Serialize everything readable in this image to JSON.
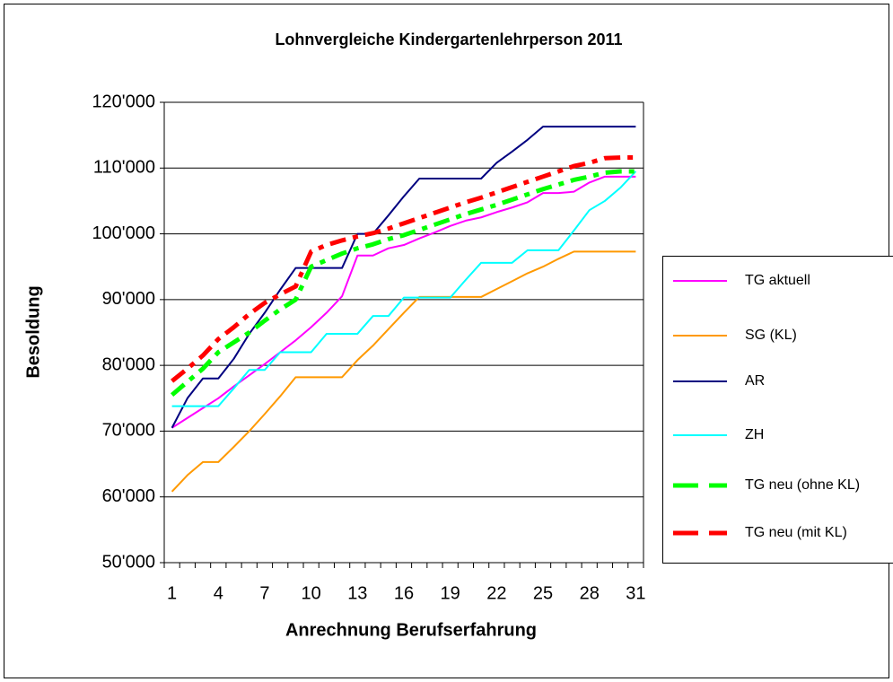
{
  "chart_data": {
    "type": "line",
    "title": "Lohnvergleiche Kindergartenlehrperson 2011",
    "x_label": "Anrechnung Berufserfahrung",
    "y_label": "Besoldung",
    "categories": [
      "1",
      null,
      null,
      "4",
      null,
      null,
      "7",
      null,
      null,
      "10",
      null,
      null,
      "13",
      null,
      null,
      "16",
      null,
      null,
      "19",
      null,
      null,
      "22",
      null,
      null,
      "25",
      null,
      null,
      "28",
      null,
      null,
      "31"
    ],
    "ylim": [
      50000,
      120000
    ],
    "yticks": [
      {
        "value": 50000,
        "label": "50'000"
      },
      {
        "value": 60000,
        "label": "60'000"
      },
      {
        "value": 70000,
        "label": "70'000"
      },
      {
        "value": 80000,
        "label": "80'000"
      },
      {
        "value": 90000,
        "label": "90'000"
      },
      {
        "value": 100000,
        "label": "100'000"
      },
      {
        "value": 110000,
        "label": "110'000"
      },
      {
        "value": 120000,
        "label": "120'000"
      }
    ],
    "grid": true,
    "legend": "right",
    "series": [
      {
        "name": "TG aktuell",
        "color": "#ff00ff",
        "dashed": false,
        "values": [
          70500,
          72000,
          73500,
          75000,
          76800,
          78500,
          80200,
          82000,
          83800,
          85800,
          88000,
          90500,
          96700,
          96700,
          97800,
          98300,
          99300,
          100200,
          101200,
          102000,
          102500,
          103300,
          104000,
          104800,
          106200,
          106200,
          106400,
          107800,
          108700,
          108700,
          108700
        ]
      },
      {
        "name": "SG (KL)",
        "color": "#ff9900",
        "dashed": false,
        "values": [
          60800,
          63300,
          65300,
          65300,
          67600,
          70000,
          72600,
          75300,
          78200,
          78200,
          78200,
          78200,
          80800,
          83000,
          85500,
          88000,
          90400,
          90400,
          90400,
          90400,
          90400,
          91600,
          92800,
          94000,
          95000,
          96200,
          97300,
          97300,
          97300,
          97300,
          97300
        ]
      },
      {
        "name": "AR",
        "color": "#000080",
        "dashed": false,
        "values": [
          70500,
          75000,
          78000,
          78000,
          81000,
          84800,
          88000,
          91500,
          94800,
          94800,
          94800,
          94800,
          100000,
          100000,
          102800,
          105700,
          108400,
          108400,
          108400,
          108400,
          108400,
          110800,
          112500,
          114300,
          116300,
          116300,
          116300,
          116300,
          116300,
          116300,
          116300
        ]
      },
      {
        "name": "ZH",
        "color": "#00ffff",
        "dashed": false,
        "values": [
          73800,
          73800,
          73800,
          73800,
          76500,
          79300,
          79300,
          82000,
          82000,
          82000,
          84800,
          84800,
          84800,
          87500,
          87500,
          90300,
          90300,
          90300,
          90300,
          93000,
          95600,
          95600,
          95600,
          97500,
          97500,
          97500,
          100500,
          103600,
          105000,
          107000,
          109500
        ]
      },
      {
        "name": "TG neu (ohne KL)",
        "color": "#00ff00",
        "dashed": true,
        "values": [
          75500,
          77500,
          79500,
          82000,
          83500,
          85000,
          86800,
          88500,
          90000,
          95000,
          96000,
          97000,
          97800,
          98400,
          99200,
          99800,
          100600,
          101400,
          102200,
          103000,
          103700,
          104400,
          105200,
          106000,
          106800,
          107500,
          108200,
          108700,
          109300,
          109500,
          109500
        ]
      },
      {
        "name": "TG neu (mit KL)",
        "color": "#ff0000",
        "dashed": true,
        "values": [
          77600,
          79500,
          81500,
          84000,
          85800,
          87800,
          89500,
          90800,
          92000,
          97300,
          98300,
          99000,
          99600,
          100100,
          100800,
          101600,
          102400,
          103200,
          104000,
          104800,
          105500,
          106300,
          107100,
          107900,
          108700,
          109500,
          110300,
          110800,
          111500,
          111600,
          111600
        ]
      }
    ]
  }
}
